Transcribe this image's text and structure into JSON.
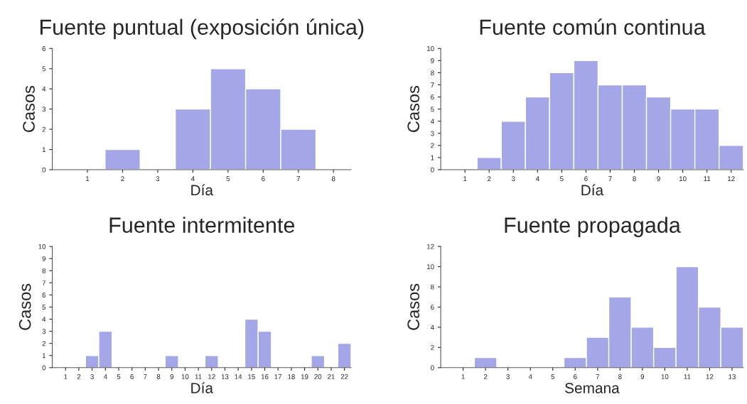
{
  "chart_data": [
    {
      "type": "bar",
      "title": "Fuente puntual (exposición única)",
      "xlabel": "Día",
      "ylabel": "Casos",
      "categories": [
        "1",
        "2",
        "3",
        "4",
        "5",
        "6",
        "7",
        "8"
      ],
      "values": [
        null,
        1,
        null,
        3,
        5,
        4,
        2,
        null
      ],
      "color": "#a4a6e8",
      "ylim": [
        0,
        6
      ],
      "yticks": [
        0,
        1,
        2,
        3,
        4,
        5,
        6
      ]
    },
    {
      "type": "bar",
      "title": "Fuente común continua",
      "xlabel": "Día",
      "ylabel": "Casos",
      "categories": [
        "1",
        "2",
        "3",
        "4",
        "5",
        "6",
        "7",
        "8",
        "9",
        "10",
        "11",
        "12"
      ],
      "values": [
        null,
        1,
        4,
        6,
        8,
        9,
        7,
        7,
        6,
        5,
        5,
        2
      ],
      "color": "#a4a6e8",
      "ylim": [
        0,
        10
      ],
      "yticks": [
        0,
        1,
        2,
        3,
        4,
        5,
        6,
        7,
        8,
        9,
        10
      ]
    },
    {
      "type": "bar",
      "title": "Fuente intermitente",
      "xlabel": "Día",
      "ylabel": "Casos",
      "categories": [
        "1",
        "2",
        "3",
        "4",
        "5",
        "6",
        "7",
        "8",
        "9",
        "10",
        "11",
        "12",
        "13",
        "14",
        "15",
        "16",
        "17",
        "18",
        "19",
        "20",
        "21",
        "22"
      ],
      "values": [
        null,
        null,
        1,
        3,
        null,
        null,
        null,
        null,
        1,
        null,
        null,
        1,
        null,
        null,
        4,
        3,
        null,
        null,
        null,
        1,
        null,
        2
      ],
      "color": "#a4a6e8",
      "ylim": [
        0,
        10
      ],
      "yticks": [
        0,
        1,
        2,
        3,
        4,
        5,
        6,
        7,
        8,
        9,
        10
      ]
    },
    {
      "type": "bar",
      "title": "Fuente propagada",
      "xlabel": "Semana",
      "ylabel": "Casos",
      "categories": [
        "1",
        "2",
        "3",
        "4",
        "5",
        "6",
        "7",
        "8",
        "9",
        "10",
        "11",
        "12",
        "13"
      ],
      "values": [
        null,
        1,
        null,
        null,
        null,
        1,
        3,
        7,
        4,
        2,
        10,
        6,
        4
      ],
      "color": "#a4a6e8",
      "ylim": [
        0,
        12
      ],
      "yticks": [
        0,
        2,
        4,
        6,
        8,
        10,
        12
      ]
    }
  ]
}
